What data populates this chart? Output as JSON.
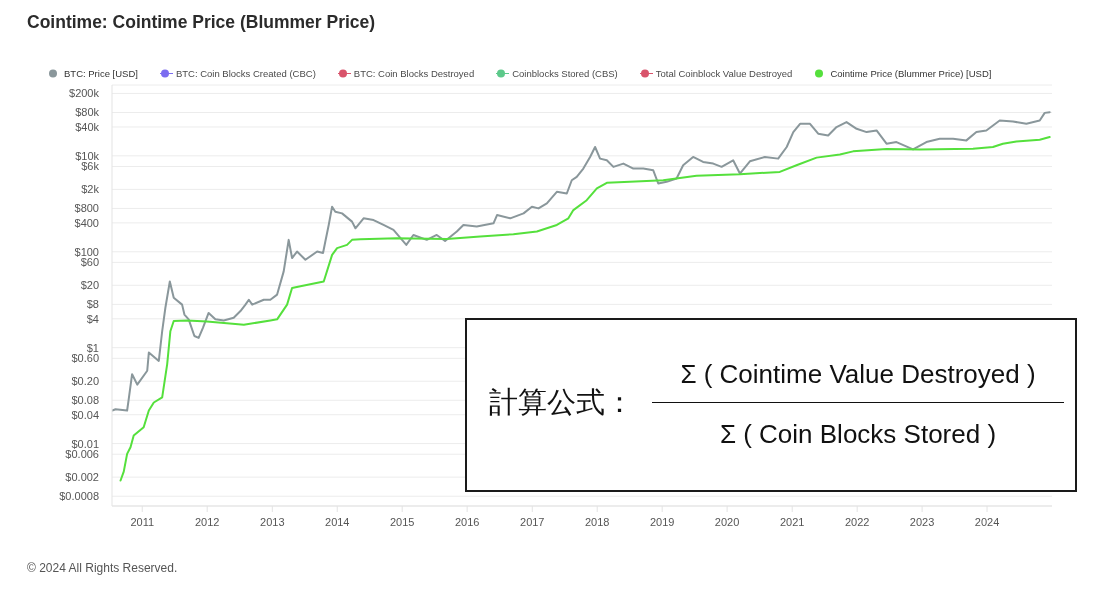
{
  "chart_data": {
    "type": "line",
    "title": "Cointime: Cointime Price (Blummer Price)",
    "series": [
      {
        "name": "BTC: Price [USD]",
        "color": "#8a979b",
        "x": [
          "2010-07-17",
          "2010-08-04",
          "2010-10-08",
          "2010-10-17",
          "2010-11-05",
          "2010-12-04",
          "2011-01-29",
          "2011-02-07",
          "2011-04-04",
          "2011-04-23",
          "2011-05-11",
          "2011-06-05",
          "2011-06-27",
          "2011-08-13",
          "2011-08-26",
          "2011-09-19",
          "2011-10-21",
          "2011-11-14",
          "2011-12-08",
          "2012-01-09",
          "2012-02-16",
          "2012-04-03",
          "2012-05-29",
          "2012-07-06",
          "2012-08-03",
          "2012-08-22",
          "2012-09-10",
          "2012-11-14",
          "2012-12-21",
          "2013-01-28",
          "2013-03-06",
          "2013-04-03",
          "2013-04-22",
          "2013-05-20",
          "2013-07-06",
          "2013-09-10",
          "2013-10-13",
          "2013-10-26",
          "2013-11-14",
          "2013-12-03",
          "2013-12-21",
          "2014-01-28",
          "2014-03-25",
          "2014-04-13",
          "2014-05-29",
          "2014-07-24",
          "2014-09-18",
          "2014-11-13",
          "2015-01-24",
          "2015-03-05",
          "2015-05-19",
          "2015-07-14",
          "2015-08-30",
          "2015-11-04",
          "2015-12-11",
          "2016-02-24",
          "2016-05-28",
          "2016-06-17",
          "2016-08-30",
          "2016-11-13",
          "2016-12-30",
          "2017-02-05",
          "2017-03-24",
          "2017-05-19",
          "2017-07-14",
          "2017-08-11",
          "2017-09-08",
          "2017-10-15",
          "2017-11-22",
          "2017-12-20",
          "2018-01-17",
          "2018-02-24",
          "2018-04-02",
          "2018-05-28",
          "2018-07-23",
          "2018-09-17",
          "2018-11-12",
          "2018-12-10",
          "2019-01-26",
          "2019-03-23",
          "2019-04-29",
          "2019-06-24",
          "2019-08-19",
          "2019-10-15",
          "2019-12-01",
          "2020-02-04",
          "2020-03-13",
          "2020-05-08",
          "2020-07-31",
          "2020-10-14",
          "2020-12-01",
          "2021-01-07",
          "2021-02-14",
          "2021-04-11",
          "2021-05-27",
          "2021-07-22",
          "2021-09-07",
          "2021-11-02",
          "2021-12-29",
          "2022-02-23",
          "2022-04-20",
          "2022-06-15",
          "2022-08-10",
          "2022-11-11",
          "2023-01-25",
          "2023-04-10",
          "2023-06-24",
          "2023-09-07",
          "2023-11-02",
          "2023-12-28",
          "2024-03-12",
          "2024-05-26",
          "2024-08-09",
          "2024-10-23",
          "2024-11-20",
          "2024-12-18"
        ],
        "values": [
          0.049,
          0.052,
          0.049,
          0.085,
          0.28,
          0.17,
          0.33,
          0.79,
          0.53,
          2.2,
          6.8,
          24,
          11,
          7.9,
          4.9,
          3.9,
          1.75,
          1.6,
          2.6,
          5.3,
          3.9,
          3.7,
          4.2,
          5.8,
          7.9,
          10,
          7.9,
          10,
          10,
          12.8,
          39,
          177,
          74,
          101,
          68,
          101,
          94,
          164,
          361,
          871,
          685,
          632,
          425,
          309,
          498,
          459,
          362,
          285,
          139,
          224,
          177,
          224,
          168,
          264,
          362,
          335,
          392,
          583,
          498,
          632,
          871,
          803,
          1020,
          1780,
          1640,
          3100,
          3650,
          5420,
          9480,
          15300,
          8750,
          8070,
          5890,
          6890,
          5420,
          5420,
          5000,
          2650,
          2870,
          3360,
          6350,
          9480,
          7470,
          6890,
          5890,
          8070,
          4270,
          7690,
          9480,
          8750,
          15300,
          31300,
          46600,
          46600,
          28900,
          26600,
          39800,
          50500,
          36600,
          31300,
          33800,
          17900,
          19400,
          13600,
          19400,
          22700,
          22700,
          21000,
          31300,
          33800,
          54500,
          51900,
          46600,
          54500,
          78700,
          81400
        ]
      },
      {
        "name": "BTC: Coin Blocks Created (CBC)",
        "color": "#7b6cf0"
      },
      {
        "name": "BTC: Coin Blocks Destroyed",
        "color": "#d9536b"
      },
      {
        "name": "Coinblocks Stored (CBS)",
        "color": "#5cc98a"
      },
      {
        "name": "Total Coinblock Value Destroyed",
        "color": "#d9536b"
      },
      {
        "name": "Cointime Price (Blummer Price) [USD]",
        "color": "#55e03c",
        "x": [
          "2010-09-01",
          "2010-09-19",
          "2010-10-08",
          "2010-10-27",
          "2010-11-14",
          "2011-01-09",
          "2011-02-07",
          "2011-03-07",
          "2011-04-23",
          "2011-05-21",
          "2011-06-08",
          "2011-06-27",
          "2011-09-10",
          "2011-12-31",
          "2012-07-25",
          "2012-12-21",
          "2013-01-28",
          "2013-03-25",
          "2013-04-22",
          "2013-06-08",
          "2013-10-17",
          "2013-12-03",
          "2013-12-31",
          "2014-02-25",
          "2014-03-25",
          "2014-05-11",
          "2014-12-02",
          "2015-09-08",
          "2016-03-14",
          "2016-09-17",
          "2017-01-27",
          "2017-05-19",
          "2017-07-23",
          "2017-08-20",
          "2017-11-03",
          "2017-12-30",
          "2018-02-24",
          "2018-07-04",
          "2019-01-07",
          "2019-07-13",
          "2020-03-13",
          "2020-10-23",
          "2021-01-25",
          "2021-05-18",
          "2021-09-26",
          "2021-12-09",
          "2022-06-15",
          "2022-12-18",
          "2023-10-14",
          "2024-02-03",
          "2024-03-30",
          "2024-06-14",
          "2024-10-23",
          "2024-12-18"
        ],
        "values": [
          0.0017,
          0.0026,
          0.0061,
          0.0084,
          0.0147,
          0.022,
          0.049,
          0.072,
          0.092,
          0.45,
          2.2,
          3.6,
          3.7,
          3.5,
          3.0,
          3.7,
          3.9,
          7.9,
          17.6,
          19,
          24,
          86,
          119,
          139,
          177,
          183,
          191,
          185,
          208,
          232,
          264,
          362,
          498,
          740,
          1190,
          2090,
          2740,
          2870,
          3110,
          3830,
          4130,
          4630,
          6350,
          9180,
          10700,
          12400,
          13900,
          13600,
          14100,
          15300,
          17900,
          20000,
          21700,
          24700
        ]
      }
    ],
    "xlim": [
      "2010-07-15",
      "2024-12-31"
    ],
    "xticks": [
      "2011",
      "2012",
      "2013",
      "2014",
      "2015",
      "2016",
      "2017",
      "2018",
      "2019",
      "2020",
      "2021",
      "2022",
      "2023",
      "2024"
    ],
    "ylim": [
      0.0005,
      300000
    ],
    "yticks": [
      {
        "value": 200000,
        "label": "$200k"
      },
      {
        "value": 80000,
        "label": "$80k"
      },
      {
        "value": 40000,
        "label": "$40k"
      },
      {
        "value": 10000,
        "label": "$10k"
      },
      {
        "value": 6000,
        "label": "$6k"
      },
      {
        "value": 2000,
        "label": "$2k"
      },
      {
        "value": 800,
        "label": "$800"
      },
      {
        "value": 400,
        "label": "$400"
      },
      {
        "value": 100,
        "label": "$100"
      },
      {
        "value": 60,
        "label": "$60"
      },
      {
        "value": 20,
        "label": "$20"
      },
      {
        "value": 8,
        "label": "$8"
      },
      {
        "value": 4,
        "label": "$4"
      },
      {
        "value": 1,
        "label": "$1"
      },
      {
        "value": 0.6,
        "label": "$0.60"
      },
      {
        "value": 0.2,
        "label": "$0.20"
      },
      {
        "value": 0.08,
        "label": "$0.08"
      },
      {
        "value": 0.04,
        "label": "$0.04"
      },
      {
        "value": 0.01,
        "label": "$0.01"
      },
      {
        "value": 0.006,
        "label": "$0.006"
      },
      {
        "value": 0.002,
        "label": "$0.002"
      },
      {
        "value": 0.0008,
        "label": "$0.0008"
      }
    ],
    "log": "y",
    "grid": "y",
    "legend": "top left",
    "annotations": [
      "計算公式：",
      "Σ ( Cointime Value Destroyed )",
      "Σ ( Coin Blocks Stored )",
      "© 2024 All Rights Reserved."
    ]
  }
}
